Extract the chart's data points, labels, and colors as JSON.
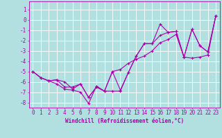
{
  "xlabel": "Windchill (Refroidissement éolien,°C)",
  "background_color": "#b2e0e0",
  "grid_color": "#c8e8e8",
  "line_color": "#aa00aa",
  "xlim": [
    -0.5,
    23.5
  ],
  "ylim": [
    -8.5,
    1.8
  ],
  "yticks": [
    1,
    0,
    -1,
    -2,
    -3,
    -4,
    -5,
    -6,
    -7,
    -8
  ],
  "xticks": [
    0,
    1,
    2,
    3,
    4,
    5,
    6,
    7,
    8,
    9,
    10,
    11,
    12,
    13,
    14,
    15,
    16,
    17,
    18,
    19,
    20,
    21,
    22,
    23
  ],
  "line1": [
    -5.0,
    -5.6,
    -5.9,
    -6.2,
    -6.7,
    -6.8,
    -7.0,
    -8.1,
    -6.4,
    -6.9,
    -6.9,
    -6.9,
    -5.1,
    -3.5,
    -2.3,
    -2.3,
    -0.4,
    -1.2,
    -1.1,
    -3.6,
    -0.9,
    -2.5,
    -3.1,
    0.4
  ],
  "line2": [
    -5.0,
    -5.6,
    -5.9,
    -5.8,
    -6.0,
    -6.7,
    -6.2,
    -7.5,
    -6.5,
    -6.9,
    -5.0,
    -6.8,
    -5.1,
    -3.5,
    -2.3,
    -2.3,
    -1.5,
    -1.2,
    -1.1,
    -3.6,
    -0.9,
    -2.5,
    -3.1,
    0.4
  ],
  "line3": [
    -5.0,
    -5.6,
    -5.9,
    -5.8,
    -6.5,
    -6.5,
    -6.2,
    -7.5,
    -6.5,
    -6.9,
    -5.0,
    -4.8,
    -4.2,
    -3.8,
    -3.5,
    -3.0,
    -2.2,
    -1.9,
    -1.4,
    -3.6,
    -3.7,
    -3.6,
    -3.4,
    0.4
  ],
  "tick_fontsize": 5.5,
  "xlabel_fontsize": 5.5,
  "marker_size": 3,
  "linewidth": 0.8
}
